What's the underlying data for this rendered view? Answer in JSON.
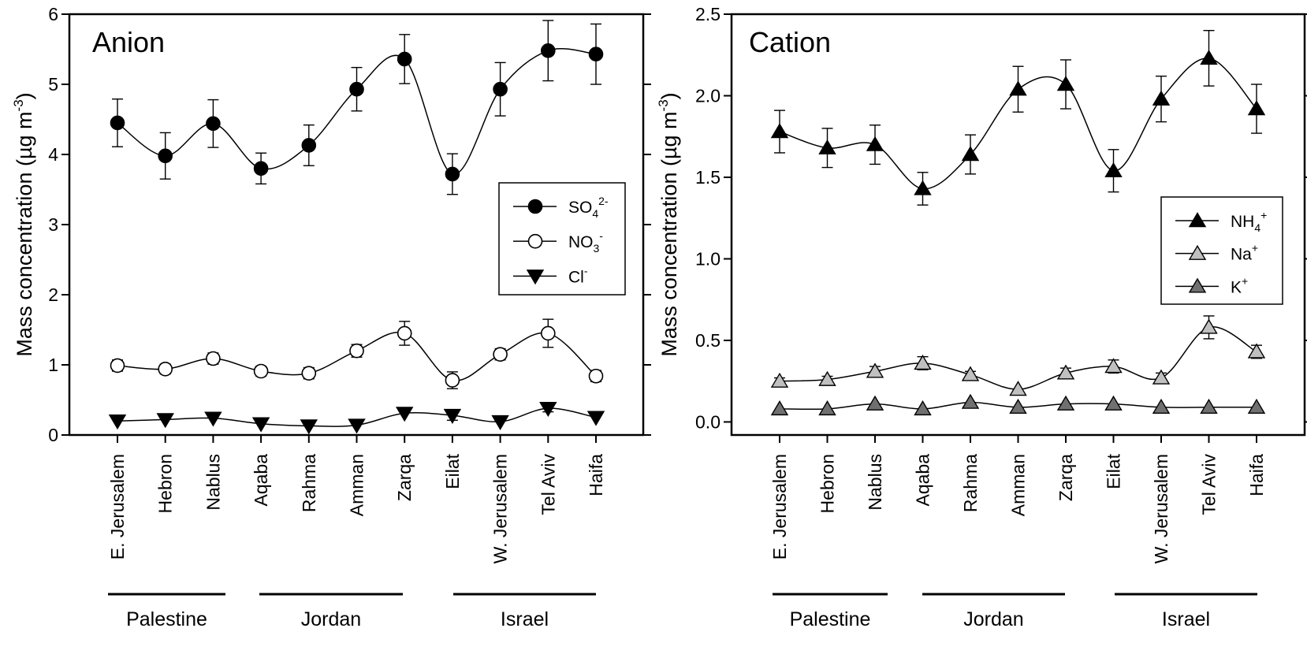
{
  "chart_data": [
    {
      "type": "line",
      "panel_label": "Anion",
      "ylabel": "Mass concentration (µg m⁻³)",
      "ylabel_parts": {
        "main": "Mass concentration (",
        "mu": "µ",
        "unit": "g m",
        "exp": "-3",
        "close": ")"
      },
      "ylim": [
        0,
        6
      ],
      "yticks": [
        "0",
        "1",
        "2",
        "3",
        "4",
        "5",
        "6"
      ],
      "ytick_values": [
        0,
        1,
        2,
        3,
        4,
        5,
        6
      ],
      "categories": [
        "E. Jerusalem",
        "Hebron",
        "Nablus",
        "Aqaba",
        "Rahma",
        "Amman",
        "Zarqa",
        "Eilat",
        "W. Jerusalem",
        "Tel Aviv",
        "Haifa"
      ],
      "groups": [
        {
          "name": "Palestine",
          "start": 0,
          "end": 2
        },
        {
          "name": "Jordan",
          "start": 3,
          "end": 6
        },
        {
          "name": "Israel",
          "start": 7,
          "end": 10
        }
      ],
      "legend_position": "right",
      "series": [
        {
          "name": "SO4 2-",
          "label_main": "SO",
          "label_sub": "4",
          "label_sup": "2-",
          "marker": "circle",
          "fill": "#000000",
          "values": [
            4.45,
            3.98,
            4.44,
            3.8,
            4.13,
            4.93,
            5.36,
            3.72,
            4.93,
            5.48,
            5.43
          ],
          "errors": [
            0.34,
            0.33,
            0.34,
            0.22,
            0.29,
            0.31,
            0.35,
            0.29,
            0.38,
            0.43,
            0.43
          ]
        },
        {
          "name": "NO3 -",
          "label_main": "NO",
          "label_sub": "3",
          "label_sup": "-",
          "marker": "circle",
          "fill": "#ffffff",
          "values": [
            0.99,
            0.94,
            1.09,
            0.91,
            0.88,
            1.2,
            1.45,
            0.78,
            1.15,
            1.45,
            0.84
          ],
          "errors": [
            0.08,
            0.07,
            0.08,
            0.07,
            0.08,
            0.09,
            0.17,
            0.12,
            0.08,
            0.2,
            0.08
          ]
        },
        {
          "name": "Cl -",
          "label_main": "Cl",
          "label_sub": "",
          "label_sup": "-",
          "marker": "triangle-down",
          "fill": "#000000",
          "values": [
            0.2,
            0.22,
            0.24,
            0.16,
            0.13,
            0.14,
            0.31,
            0.28,
            0.19,
            0.38,
            0.25
          ],
          "errors": [
            0.0,
            0.0,
            0.0,
            0.0,
            0.0,
            0.0,
            0.0,
            0.07,
            0.0,
            0.05,
            0.0
          ]
        }
      ]
    },
    {
      "type": "line",
      "panel_label": "Cation",
      "ylabel": "Mass concentration (µg m⁻³)",
      "ylabel_parts": {
        "main": "Mass concentration (",
        "mu": "µ",
        "unit": "g m",
        "exp": "-3",
        "close": ")"
      },
      "ylim": [
        -0.08,
        2.5
      ],
      "yticks": [
        "0.0",
        "0.5",
        "1.0",
        "1.5",
        "2.0",
        "2.5"
      ],
      "ytick_values": [
        0,
        0.5,
        1.0,
        1.5,
        2.0,
        2.5
      ],
      "categories": [
        "E. Jerusalem",
        "Hebron",
        "Nablus",
        "Aqaba",
        "Rahma",
        "Amman",
        "Zarqa",
        "Eilat",
        "W. Jerusalem",
        "Tel Aviv",
        "Haifa"
      ],
      "groups": [
        {
          "name": "Palestine",
          "start": 0,
          "end": 2
        },
        {
          "name": "Jordan",
          "start": 3,
          "end": 6
        },
        {
          "name": "Israel",
          "start": 7,
          "end": 10
        }
      ],
      "legend_position": "right",
      "series": [
        {
          "name": "NH4 +",
          "label_main": "NH",
          "label_sub": "4",
          "label_sup": "+",
          "marker": "triangle-up",
          "fill": "#000000",
          "values": [
            1.78,
            1.68,
            1.7,
            1.43,
            1.64,
            2.04,
            2.07,
            1.54,
            1.98,
            2.23,
            1.92
          ],
          "errors": [
            0.13,
            0.12,
            0.12,
            0.1,
            0.12,
            0.14,
            0.15,
            0.13,
            0.14,
            0.17,
            0.15
          ]
        },
        {
          "name": "Na +",
          "label_main": "Na",
          "label_sub": "",
          "label_sup": "+",
          "marker": "triangle-up",
          "fill": "#c0c0c0",
          "values": [
            0.25,
            0.26,
            0.31,
            0.36,
            0.29,
            0.2,
            0.3,
            0.34,
            0.27,
            0.58,
            0.43
          ],
          "errors": [
            0.02,
            0.02,
            0.03,
            0.04,
            0.02,
            0.0,
            0.03,
            0.04,
            0.03,
            0.07,
            0.04
          ]
        },
        {
          "name": "K +",
          "label_main": "K",
          "label_sub": "",
          "label_sup": "+",
          "marker": "triangle-up",
          "fill": "#707070",
          "values": [
            0.08,
            0.08,
            0.11,
            0.08,
            0.12,
            0.09,
            0.11,
            0.11,
            0.09,
            0.09,
            0.09
          ],
          "errors": [
            0.0,
            0.0,
            0.0,
            0.0,
            0.0,
            0.0,
            0.0,
            0.0,
            0.0,
            0.0,
            0.0
          ]
        }
      ]
    }
  ]
}
